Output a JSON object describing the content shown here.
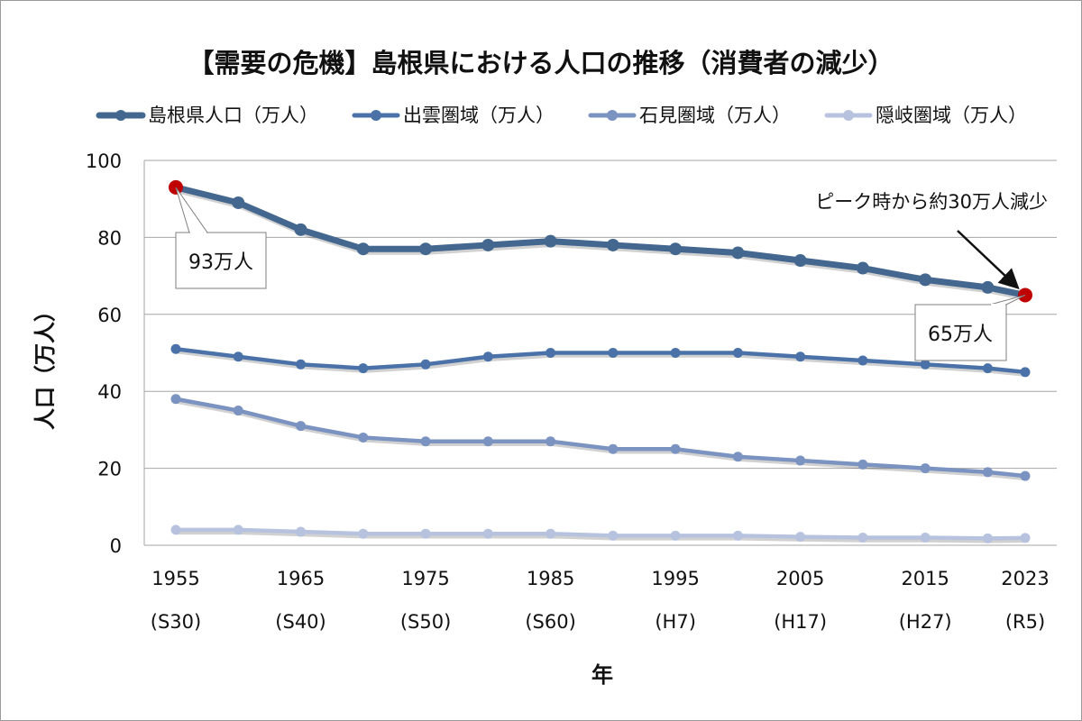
{
  "chart_data": {
    "type": "line",
    "title": "【需要の危機】島根県における人口の推移（消費者の減少）",
    "xlabel": "年",
    "ylabel": "人口（万人）",
    "ylim": [
      0,
      100
    ],
    "yticks": [
      0,
      20,
      40,
      60,
      80,
      100
    ],
    "grid": true,
    "legend_position": "top",
    "x": [
      1955,
      1960,
      1965,
      1970,
      1975,
      1980,
      1985,
      1990,
      1995,
      2000,
      2005,
      2010,
      2015,
      2020,
      2023
    ],
    "x_tick_labels": [
      {
        "year": "1955",
        "era": "(S30)"
      },
      {
        "year": "1965",
        "era": "(S40)"
      },
      {
        "year": "1975",
        "era": "(S50)"
      },
      {
        "year": "1985",
        "era": "(S60)"
      },
      {
        "year": "1995",
        "era": "(H7)"
      },
      {
        "year": "2005",
        "era": "(H17)"
      },
      {
        "year": "2015",
        "era": "(H27)"
      },
      {
        "year": "2023",
        "era": "(R5)"
      }
    ],
    "series": [
      {
        "name": "島根県人口（万人）",
        "color": "#44678f",
        "values": [
          93,
          89,
          82,
          77,
          77,
          78,
          79,
          78,
          77,
          76,
          74,
          72,
          69,
          67,
          65
        ]
      },
      {
        "name": "出雲圏域（万人）",
        "color": "#4a72a8",
        "values": [
          51,
          49,
          47,
          46,
          47,
          49,
          50,
          50,
          50,
          50,
          49,
          48,
          47,
          46,
          45
        ]
      },
      {
        "name": "石見圏域（万人）",
        "color": "#7b93c1",
        "values": [
          38,
          35,
          31,
          28,
          27,
          27,
          27,
          25,
          25,
          23,
          22,
          21,
          20,
          19,
          18
        ]
      },
      {
        "name": "隠岐圏域（万人）",
        "color": "#b7c3de",
        "values": [
          4,
          4,
          3.5,
          3,
          3,
          3,
          3,
          2.5,
          2.5,
          2.5,
          2.2,
          2,
          2,
          1.8,
          1.9
        ]
      }
    ],
    "highlight_color": "#c00000",
    "annotations": {
      "start_callout": "93万人",
      "end_callout": "65万人",
      "arrow_note": "ピーク時から約30万人減少"
    }
  }
}
